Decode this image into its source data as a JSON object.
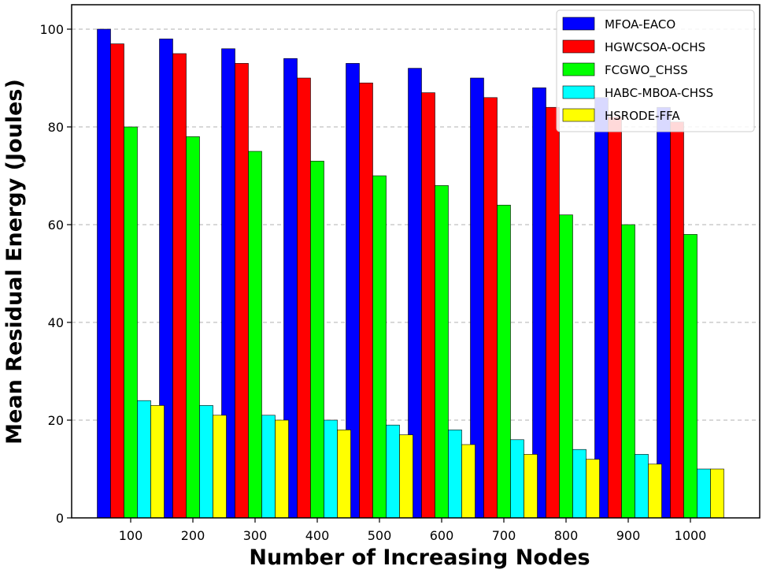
{
  "chart_data": {
    "type": "bar",
    "title": "",
    "xlabel": "Number of Increasing Nodes",
    "ylabel": "Mean Residual Energy (Joules)",
    "categories": [
      "100",
      "200",
      "300",
      "400",
      "500",
      "600",
      "700",
      "800",
      "900",
      "1000"
    ],
    "ylim": [
      0,
      105
    ],
    "yticks": [
      0,
      20,
      40,
      60,
      80,
      100
    ],
    "grid": "horizontal-dashed",
    "legend_position": "top-right",
    "series": [
      {
        "name": "MFOA-EACO",
        "color": "#0000ff",
        "values": [
          100,
          98,
          96,
          94,
          93,
          92,
          90,
          88,
          86,
          84
        ]
      },
      {
        "name": "HGWCSOA-OCHS",
        "color": "#ff0000",
        "values": [
          97,
          95,
          93,
          90,
          89,
          87,
          86,
          84,
          82,
          81
        ]
      },
      {
        "name": "FCGWO_CHSS",
        "color": "#00ff00",
        "values": [
          80,
          78,
          75,
          73,
          70,
          68,
          64,
          62,
          60,
          58
        ]
      },
      {
        "name": "HABC-MBOA-CHSS",
        "color": "#00ffff",
        "values": [
          24,
          23,
          21,
          20,
          19,
          18,
          16,
          14,
          13,
          10
        ]
      },
      {
        "name": "HSRODE-FFA",
        "color": "#ffff00",
        "values": [
          23,
          21,
          20,
          18,
          17,
          15,
          13,
          12,
          11,
          10
        ]
      }
    ]
  }
}
